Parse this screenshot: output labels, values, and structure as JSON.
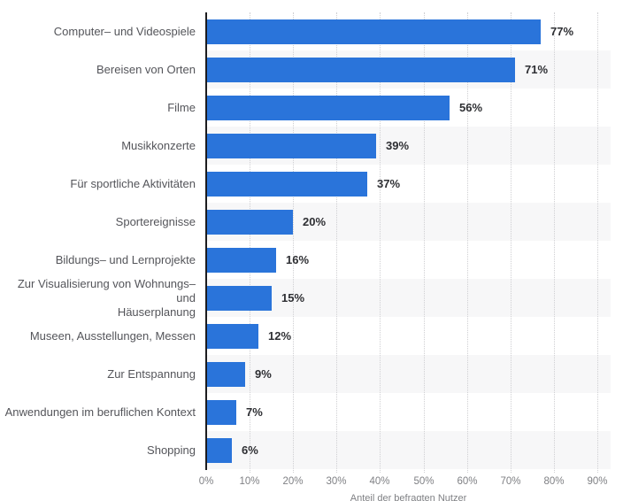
{
  "chart_data": {
    "type": "bar",
    "orientation": "horizontal",
    "title": "",
    "xlabel": "Anteil der befragten Nutzer",
    "ylabel": "",
    "xlim": [
      0,
      90
    ],
    "grid": "vertical-dotted",
    "legend": "none",
    "categories": [
      "Computer– und Videospiele",
      "Bereisen von Orten",
      "Filme",
      "Musikkonzerte",
      "Für sportliche Aktivitäten",
      "Sportereignisse",
      "Bildungs– und Lernprojekte",
      "Zur Visualisierung von Wohnungs– und\nHäuserplanung",
      "Museen, Ausstellungen, Messen",
      "Zur Entspannung",
      "Anwendungen im beruflichen Kontext",
      "Shopping"
    ],
    "values": [
      77,
      71,
      56,
      39,
      37,
      20,
      16,
      15,
      12,
      9,
      7,
      6
    ],
    "value_labels": [
      "77%",
      "71%",
      "56%",
      "39%",
      "37%",
      "20%",
      "16%",
      "15%",
      "12%",
      "9%",
      "7%",
      "6%"
    ],
    "x_ticks": [
      "0%",
      "10%",
      "20%",
      "30%",
      "40%",
      "50%",
      "60%",
      "70%",
      "80%",
      "90%"
    ],
    "colors": {
      "bar": "#2a74da",
      "row_stripe": "#f7f7f8",
      "gridline": "#cfcfd2",
      "axis_line": "#1c1c1f",
      "category_label": "#54555a",
      "value_label": "#2e2f33",
      "tick_label": "#7f8084"
    }
  }
}
